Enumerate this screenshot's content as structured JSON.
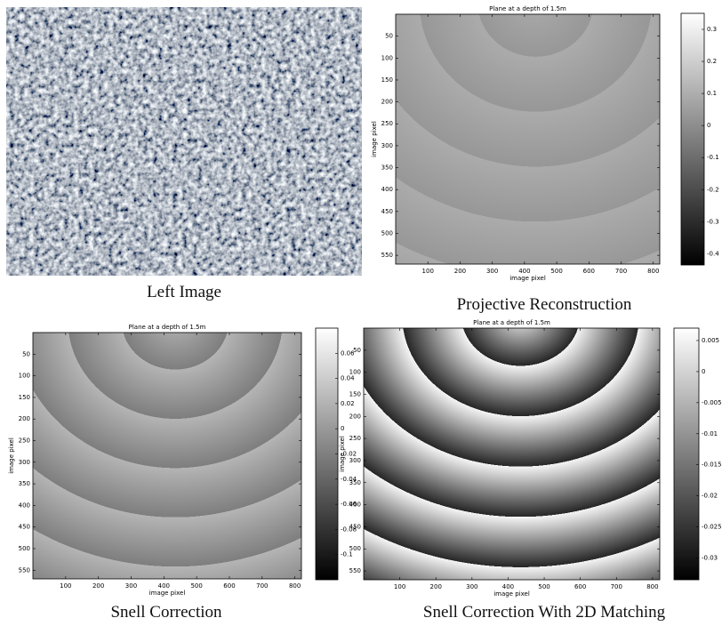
{
  "panels": [
    {
      "type": "image",
      "caption": "Left Image"
    },
    {
      "type": "heatmap",
      "title": "Plane at a depth of 1.5m",
      "xlabel": "image pixel",
      "ylabel": "image pixel",
      "xlim": [
        0,
        820
      ],
      "ylim": [
        0,
        570
      ],
      "xticks": [
        100,
        200,
        300,
        400,
        500,
        600,
        700,
        800
      ],
      "yticks": [
        50,
        100,
        150,
        200,
        250,
        300,
        350,
        400,
        450,
        500,
        550
      ],
      "clim": [
        -0.435,
        0.35
      ],
      "cticks": [
        0.3,
        0.2,
        0.1,
        0,
        -0.1,
        -0.2,
        -0.3,
        -0.4
      ],
      "caption": "Projective Reconstruction"
    },
    {
      "type": "heatmap",
      "title": "Plane at a depth of 1.5m",
      "xlabel": "image pixel",
      "ylabel": "image pixel",
      "xlim": [
        0,
        820
      ],
      "ylim": [
        0,
        570
      ],
      "xticks": [
        100,
        200,
        300,
        400,
        500,
        600,
        700,
        800
      ],
      "yticks": [
        50,
        100,
        150,
        200,
        250,
        300,
        350,
        400,
        450,
        500,
        550
      ],
      "clim": [
        -0.12,
        0.08
      ],
      "cticks": [
        0.06,
        0.04,
        0.02,
        0,
        -0.02,
        -0.04,
        -0.06,
        -0.08,
        -0.1
      ],
      "caption": "Snell Correction"
    },
    {
      "type": "heatmap",
      "title": "Plane at a depth of 1.5m",
      "xlabel": "image pixel",
      "ylabel": "image pixel",
      "xlim": [
        0,
        820
      ],
      "ylim": [
        0,
        570
      ],
      "xticks": [
        100,
        200,
        300,
        400,
        500,
        600,
        700,
        800
      ],
      "yticks": [
        50,
        100,
        150,
        200,
        250,
        300,
        350,
        400,
        450,
        500,
        550
      ],
      "clim": [
        -0.0335,
        0.007
      ],
      "cticks": [
        0.005,
        0,
        -0.005,
        -0.01,
        -0.015,
        -0.02,
        -0.025,
        -0.03
      ],
      "caption": "Snell Correction With 2D Matching"
    }
  ]
}
